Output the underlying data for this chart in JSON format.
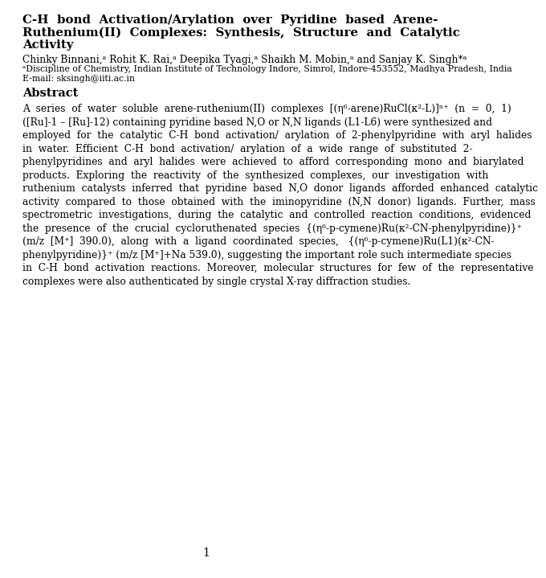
{
  "title_lines": [
    "C-H  bond  Activation/Arylation  over  Pyridine  based  Arene-",
    "Ruthenium(II)  Complexes:  Synthesis,  Structure  and  Catalytic",
    "Activity"
  ],
  "authors": "Chinky Binnani,ᵃ Rohit K. Rai,ᵃ Deepika Tyagi,ᵃ Shaikh M. Mobin,ᵃ and Sanjay K. Singh*ᵃ",
  "affiliation": "ᵃDiscipline of Chemistry, Indian Institute of Technology Indore, Simrol, Indore-453552, Madhya Pradesh, India",
  "email": "E-mail: sksingh@iiti.ac.in",
  "abstract_header": "Abstract",
  "abstract_lines": [
    "A  series  of  water  soluble  arene-ruthenium(II)  complexes  [(η⁶-arene)RuCl(κ²-L)]ⁿ⁺  (n  =  0,  1)",
    "([Ru]-1 – [Ru]-12) containing pyridine based N,O or N,N ligands (L1-L6) were synthesized and",
    "employed  for  the  catalytic  C-H  bond  activation/  arylation  of  2-phenylpyridine  with  aryl  halides",
    "in  water.  Efficient  C-H  bond  activation/  arylation  of  a  wide  range  of  substituted  2-",
    "phenylpyridines  and  aryl  halides  were  achieved  to  afford  corresponding  mono  and  biarylated",
    "products.  Exploring  the  reactivity  of  the  synthesized  complexes,  our  investigation  with",
    "ruthenium  catalysts  inferred  that  pyridine  based  N,O  donor  ligands  afforded  enhanced  catalytic",
    "activity  compared  to  those  obtained  with  the  iminopyridine  (N,N  donor)  ligands.  Further,  mass",
    "spectrometric  investigations,  during  the  catalytic  and  controlled  reaction  conditions,  evidenced",
    "the  presence  of  the  crucial  cycloruthenated  species  {(η⁶-p-cymene)Ru(κ²-CN-phenylpyridine)}⁺",
    "(m/z  [M⁺]  390.0),  along  with  a  ligand  coordinated  species,   {(η⁶-p-cymene)Ru(L1)(κ²-CN-",
    "phenylpyridine)}⁺ (m/z [M⁺]+Na 539.0), suggesting the important role such intermediate species",
    "in  C-H  bond  activation  reactions.  Moreover,  molecular  structures  for  few  of  the  representative",
    "complexes were also authenticated by single crystal X-ray diffraction studies."
  ],
  "page_number": "1",
  "background_color": "#ffffff",
  "text_color": "#000000"
}
